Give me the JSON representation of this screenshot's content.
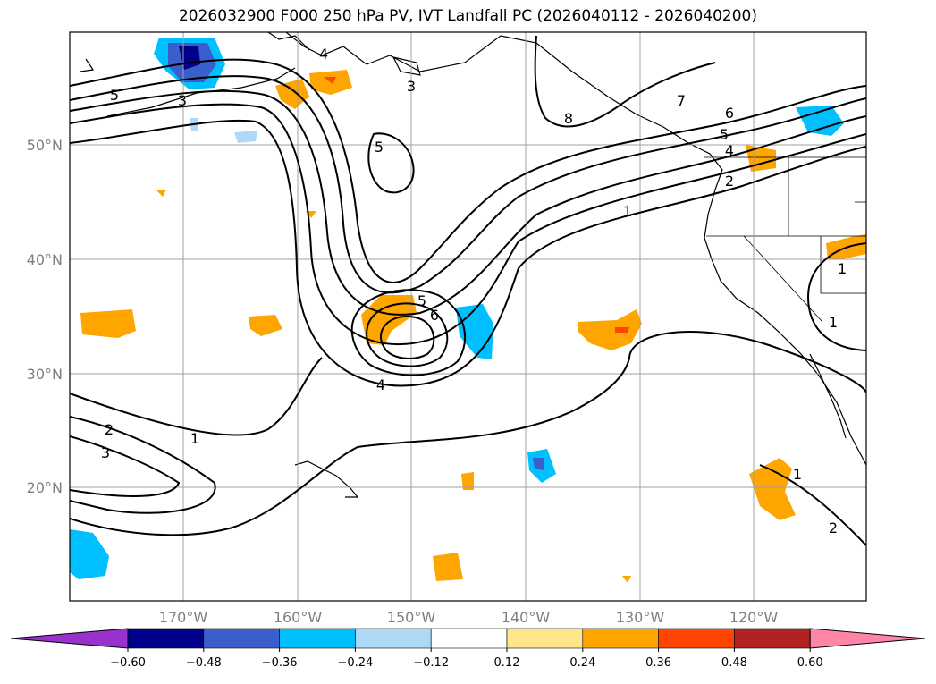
{
  "title": "2026032900 F000 250 hPa PV, IVT Landfall PC (2026040112 - 2026040200)",
  "longitude_labels": [
    "170°W",
    "160°W",
    "150°W",
    "140°W",
    "130°W",
    "120°W"
  ],
  "latitude_labels": [
    "50°N",
    "40°N",
    "30°N",
    "20°N"
  ],
  "contour_labels": [
    "5",
    "3",
    "4",
    "5",
    "3",
    "8",
    "7",
    "6",
    "5",
    "4",
    "2",
    "1",
    "5",
    "6",
    "4",
    "1",
    "2",
    "3",
    "1",
    "1",
    "2",
    "1"
  ],
  "colorbar": {
    "ticks": [
      "−0.60",
      "−0.48",
      "−0.36",
      "−0.24",
      "−0.12",
      "0.12",
      "0.24",
      "0.36",
      "0.48",
      "0.60"
    ],
    "colors": [
      "#9932cc",
      "#00008b",
      "#3a5fcd",
      "#00bfff",
      "#add8f6",
      "#ffffff",
      "#ffe68a",
      "#ffa500",
      "#ff4500",
      "#b22222",
      "#ff85a8"
    ]
  }
}
